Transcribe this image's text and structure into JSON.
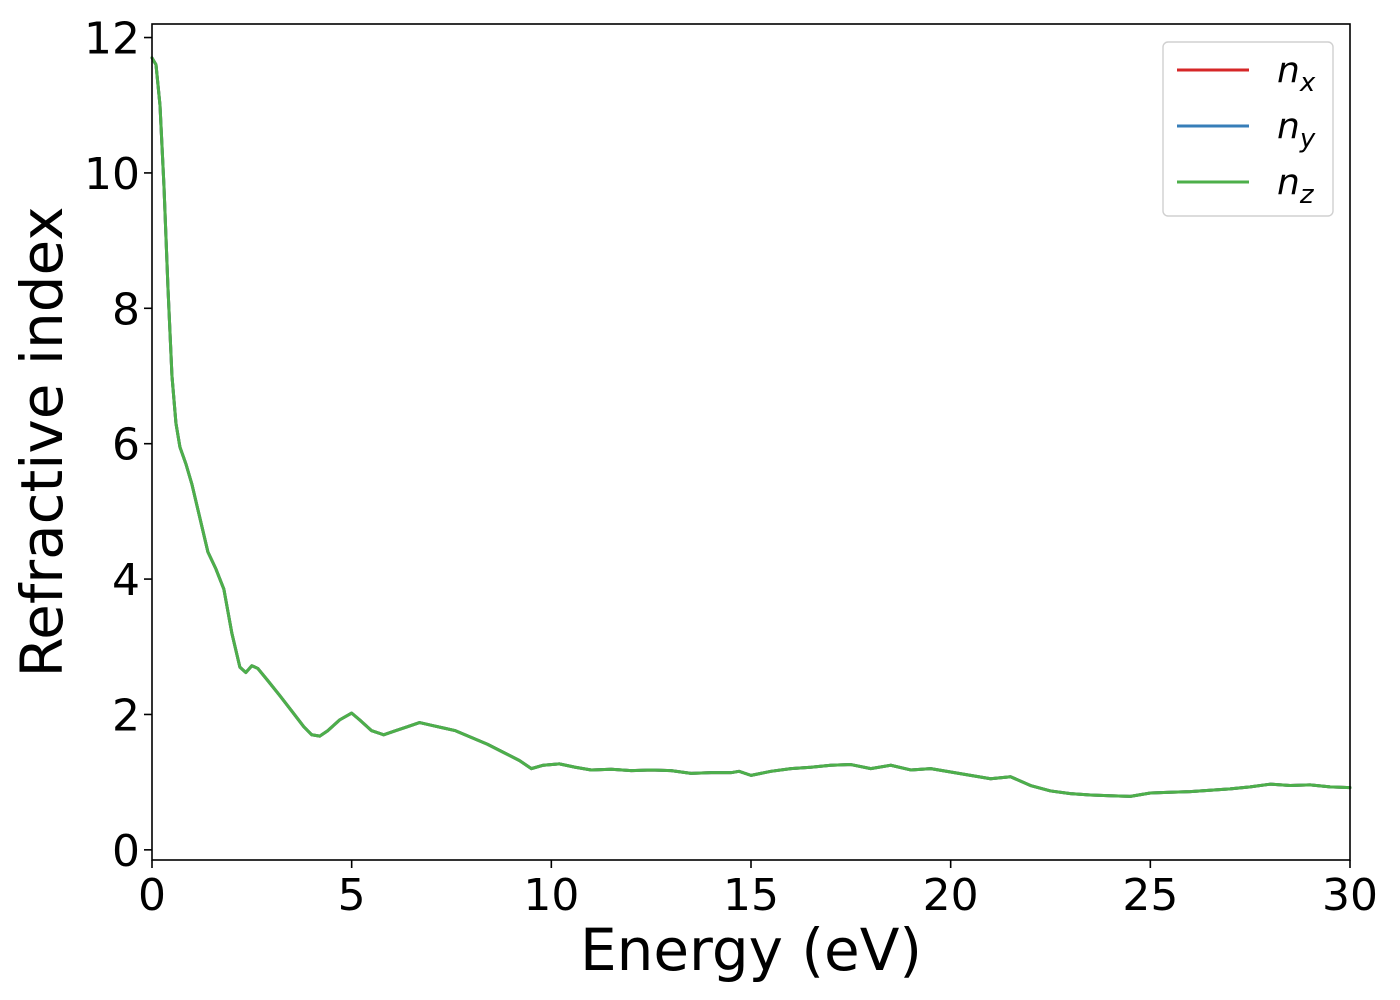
{
  "chart_data": {
    "type": "line",
    "xlabel": "Energy (eV)",
    "ylabel": "Refractive index",
    "xlim": [
      0,
      30
    ],
    "ylim": [
      -0.15,
      12.2
    ],
    "xticks": [
      0,
      5,
      10,
      15,
      20,
      25,
      30
    ],
    "yticks": [
      0,
      2,
      4,
      6,
      8,
      10,
      12
    ],
    "grid": false,
    "legend_position": "top-right",
    "x": [
      0.0,
      0.1,
      0.2,
      0.3,
      0.4,
      0.5,
      0.6,
      0.7,
      0.85,
      1.0,
      1.2,
      1.4,
      1.6,
      1.8,
      2.0,
      2.2,
      2.35,
      2.5,
      2.65,
      2.9,
      3.2,
      3.5,
      3.8,
      4.0,
      4.2,
      4.4,
      4.7,
      5.0,
      5.2,
      5.5,
      5.8,
      6.1,
      6.4,
      6.7,
      7.0,
      7.3,
      7.6,
      8.0,
      8.4,
      8.8,
      9.2,
      9.5,
      9.8,
      10.2,
      10.6,
      11.0,
      11.5,
      12.0,
      12.5,
      13.0,
      13.5,
      14.0,
      14.5,
      14.7,
      15.0,
      15.5,
      16.0,
      16.5,
      17.0,
      17.5,
      18.0,
      18.5,
      19.0,
      19.5,
      20.0,
      20.5,
      21.0,
      21.5,
      22.0,
      22.5,
      23.0,
      23.5,
      24.0,
      24.5,
      25.0,
      25.5,
      26.0,
      26.5,
      27.0,
      27.5,
      28.0,
      28.5,
      29.0,
      29.5,
      30.0
    ],
    "series": [
      {
        "name": "n_x",
        "color": "#d62728",
        "values": [
          11.7,
          11.6,
          11.0,
          9.8,
          8.3,
          7.0,
          6.3,
          5.95,
          5.7,
          5.4,
          4.9,
          4.4,
          4.15,
          3.85,
          3.2,
          2.7,
          2.62,
          2.72,
          2.68,
          2.5,
          2.28,
          2.05,
          1.82,
          1.7,
          1.68,
          1.76,
          1.92,
          2.02,
          1.92,
          1.76,
          1.7,
          1.76,
          1.82,
          1.88,
          1.84,
          1.8,
          1.76,
          1.66,
          1.56,
          1.44,
          1.32,
          1.2,
          1.25,
          1.27,
          1.22,
          1.18,
          1.19,
          1.17,
          1.18,
          1.17,
          1.13,
          1.14,
          1.14,
          1.16,
          1.1,
          1.16,
          1.2,
          1.22,
          1.25,
          1.26,
          1.2,
          1.25,
          1.18,
          1.2,
          1.15,
          1.1,
          1.05,
          1.08,
          0.95,
          0.87,
          0.83,
          0.81,
          0.8,
          0.79,
          0.84,
          0.85,
          0.86,
          0.88,
          0.9,
          0.93,
          0.97,
          0.95,
          0.96,
          0.93,
          0.92
        ]
      },
      {
        "name": "n_y",
        "color": "#377eb8",
        "values": [
          11.7,
          11.6,
          11.0,
          9.8,
          8.3,
          7.0,
          6.3,
          5.95,
          5.7,
          5.4,
          4.9,
          4.4,
          4.15,
          3.85,
          3.2,
          2.7,
          2.62,
          2.72,
          2.68,
          2.5,
          2.28,
          2.05,
          1.82,
          1.7,
          1.68,
          1.76,
          1.92,
          2.02,
          1.92,
          1.76,
          1.7,
          1.76,
          1.82,
          1.88,
          1.84,
          1.8,
          1.76,
          1.66,
          1.56,
          1.44,
          1.32,
          1.2,
          1.25,
          1.27,
          1.22,
          1.18,
          1.19,
          1.17,
          1.18,
          1.17,
          1.13,
          1.14,
          1.14,
          1.16,
          1.1,
          1.16,
          1.2,
          1.22,
          1.25,
          1.26,
          1.2,
          1.25,
          1.18,
          1.2,
          1.15,
          1.1,
          1.05,
          1.08,
          0.95,
          0.87,
          0.83,
          0.81,
          0.8,
          0.79,
          0.84,
          0.85,
          0.86,
          0.88,
          0.9,
          0.93,
          0.97,
          0.95,
          0.96,
          0.93,
          0.92
        ]
      },
      {
        "name": "n_z",
        "color": "#4daf4a",
        "values": [
          11.7,
          11.6,
          11.0,
          9.8,
          8.3,
          7.0,
          6.3,
          5.95,
          5.7,
          5.4,
          4.9,
          4.4,
          4.15,
          3.85,
          3.2,
          2.7,
          2.62,
          2.72,
          2.68,
          2.5,
          2.28,
          2.05,
          1.82,
          1.7,
          1.68,
          1.76,
          1.92,
          2.02,
          1.92,
          1.76,
          1.7,
          1.76,
          1.82,
          1.88,
          1.84,
          1.8,
          1.76,
          1.66,
          1.56,
          1.44,
          1.32,
          1.2,
          1.25,
          1.27,
          1.22,
          1.18,
          1.19,
          1.17,
          1.18,
          1.17,
          1.13,
          1.14,
          1.14,
          1.16,
          1.1,
          1.16,
          1.2,
          1.22,
          1.25,
          1.26,
          1.2,
          1.25,
          1.18,
          1.2,
          1.15,
          1.1,
          1.05,
          1.08,
          0.95,
          0.87,
          0.83,
          0.81,
          0.8,
          0.79,
          0.84,
          0.85,
          0.86,
          0.88,
          0.9,
          0.93,
          0.97,
          0.95,
          0.96,
          0.93,
          0.92
        ]
      }
    ],
    "legend": [
      {
        "base": "n",
        "sub": "x"
      },
      {
        "base": "n",
        "sub": "y"
      },
      {
        "base": "n",
        "sub": "z"
      }
    ]
  }
}
